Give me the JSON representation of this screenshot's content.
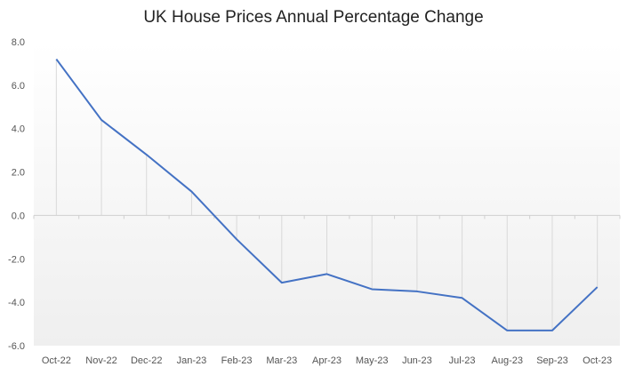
{
  "chart_data": {
    "type": "line",
    "title": "UK House Prices Annual Percentage Change",
    "xlabel": "",
    "ylabel": "",
    "categories": [
      "Oct-22",
      "Nov-22",
      "Dec-22",
      "Jan-23",
      "Feb-23",
      "Mar-23",
      "Apr-23",
      "May-23",
      "Jun-23",
      "Jul-23",
      "Aug-23",
      "Sep-23",
      "Oct-23"
    ],
    "values": [
      7.2,
      4.4,
      2.8,
      1.1,
      -1.1,
      -3.1,
      -2.7,
      -3.4,
      -3.5,
      -3.8,
      -5.3,
      -5.3,
      -3.3
    ],
    "ylim": [
      -6,
      8
    ],
    "yticks": [
      "8.0",
      "6.0",
      "4.0",
      "2.0",
      "0.0",
      "-2.0",
      "-4.0",
      "-6.0"
    ],
    "grid": false,
    "drop_lines": true,
    "legend": "none",
    "line_color": "#4472C4"
  }
}
